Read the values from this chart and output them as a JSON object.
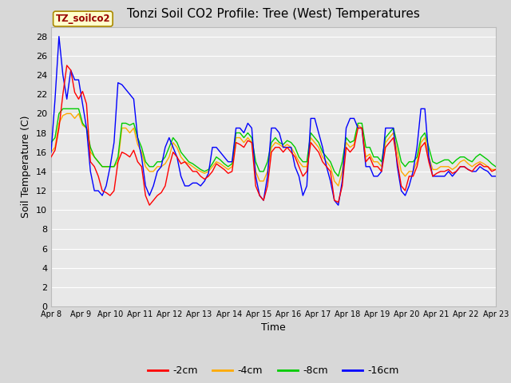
{
  "title": "Tonzi Soil CO2 Profile: Tree (West) Temperatures",
  "xlabel": "Time",
  "ylabel": "Soil Temperature (C)",
  "ylim": [
    0,
    29
  ],
  "yticks": [
    0,
    2,
    4,
    6,
    8,
    10,
    12,
    14,
    16,
    18,
    20,
    22,
    24,
    26,
    28
  ],
  "legend_label": "TZ_soilco2",
  "series_labels": [
    "-2cm",
    "-4cm",
    "-8cm",
    "-16cm"
  ],
  "series_colors": [
    "#ff0000",
    "#ffaa00",
    "#00cc00",
    "#0000ff"
  ],
  "fig_bg_color": "#d8d8d8",
  "plot_bg_color": "#e8e8e8",
  "legend_bg_color": "#ffffff",
  "title_fontsize": 11,
  "label_fontsize": 9,
  "tick_fontsize": 8,
  "xtick_labels": [
    "Apr 8",
    "Apr 9",
    "Apr 10",
    "Apr 11",
    "Apr 12",
    "Apr 13",
    "Apr 14",
    "Apr 15",
    "Apr 16",
    "Apr 17",
    "Apr 18",
    "Apr 19",
    "Apr 20",
    "Apr 21",
    "Apr 22",
    "Apr 23"
  ],
  "t_2cm": [
    15.5,
    16.2,
    18.5,
    22.0,
    25.0,
    24.5,
    22.2,
    21.5,
    22.3,
    21.0,
    15.0,
    14.5,
    13.5,
    12.0,
    11.8,
    11.5,
    12.0,
    15.0,
    16.0,
    15.8,
    15.5,
    16.2,
    15.0,
    14.5,
    11.5,
    10.5,
    11.0,
    11.5,
    11.8,
    12.5,
    14.5,
    16.0,
    15.5,
    14.8,
    15.0,
    14.5,
    14.0,
    14.0,
    13.5,
    13.2,
    13.5,
    14.0,
    14.8,
    14.5,
    14.2,
    13.8,
    14.0,
    17.0,
    16.8,
    16.5,
    17.2,
    17.0,
    12.5,
    11.5,
    11.0,
    12.5,
    16.0,
    16.5,
    16.5,
    16.0,
    16.5,
    16.0,
    15.5,
    14.5,
    13.5,
    14.0,
    17.0,
    16.5,
    16.0,
    15.0,
    14.5,
    14.0,
    11.0,
    10.8,
    12.5,
    16.5,
    16.0,
    16.5,
    18.5,
    18.5,
    15.0,
    15.5,
    14.5,
    14.5,
    14.0,
    16.5,
    17.0,
    17.5,
    15.0,
    12.5,
    12.0,
    13.5,
    13.5,
    14.5,
    16.5,
    17.0,
    15.0,
    13.5,
    13.8,
    14.0,
    14.0,
    14.2,
    13.8,
    14.0,
    14.5,
    14.5,
    14.2,
    14.0,
    14.5,
    14.8,
    14.5,
    14.5,
    14.0,
    14.2
  ],
  "t_4cm": [
    16.0,
    16.5,
    19.0,
    19.8,
    20.0,
    20.0,
    19.5,
    20.0,
    18.8,
    18.5,
    16.0,
    15.5,
    15.0,
    14.5,
    14.5,
    14.5,
    14.5,
    15.0,
    18.5,
    18.5,
    18.0,
    18.5,
    16.8,
    16.0,
    14.5,
    14.0,
    14.0,
    14.5,
    14.5,
    14.8,
    15.5,
    17.0,
    16.5,
    15.5,
    15.0,
    14.8,
    14.5,
    14.2,
    14.0,
    13.8,
    14.0,
    14.5,
    15.0,
    14.8,
    14.5,
    14.2,
    14.5,
    17.5,
    17.5,
    17.0,
    17.5,
    17.0,
    14.0,
    13.0,
    13.0,
    14.0,
    16.5,
    17.0,
    16.8,
    16.5,
    16.8,
    16.5,
    15.8,
    15.0,
    14.5,
    14.5,
    17.5,
    17.0,
    16.5,
    15.5,
    15.0,
    14.5,
    13.0,
    12.5,
    14.0,
    17.0,
    16.5,
    16.8,
    18.8,
    18.5,
    15.5,
    15.8,
    15.0,
    15.0,
    14.5,
    17.0,
    17.5,
    18.0,
    16.0,
    14.0,
    13.5,
    14.0,
    14.0,
    15.0,
    17.0,
    17.5,
    15.5,
    14.2,
    14.2,
    14.5,
    14.5,
    14.5,
    14.2,
    14.5,
    15.0,
    15.2,
    14.8,
    14.5,
    14.8,
    15.0,
    14.8,
    14.5,
    14.2,
    14.2
  ],
  "t_8cm": [
    17.0,
    17.5,
    20.0,
    20.5,
    20.5,
    20.5,
    20.5,
    20.5,
    19.0,
    18.5,
    16.5,
    15.5,
    15.0,
    14.5,
    14.5,
    14.5,
    14.5,
    15.5,
    19.0,
    19.0,
    18.8,
    19.0,
    17.5,
    16.5,
    15.0,
    14.5,
    14.5,
    15.0,
    15.0,
    15.5,
    16.5,
    17.5,
    17.0,
    16.0,
    15.5,
    15.0,
    14.8,
    14.5,
    14.2,
    14.0,
    14.2,
    14.8,
    15.5,
    15.2,
    14.8,
    14.5,
    14.8,
    18.0,
    18.0,
    17.5,
    18.0,
    17.5,
    15.0,
    14.0,
    14.0,
    15.0,
    17.0,
    17.5,
    17.0,
    16.8,
    17.2,
    17.0,
    16.5,
    15.5,
    15.0,
    15.0,
    18.0,
    17.5,
    17.0,
    16.0,
    15.5,
    15.0,
    14.0,
    13.5,
    15.0,
    17.5,
    17.0,
    17.2,
    19.0,
    19.0,
    16.5,
    16.5,
    15.5,
    15.5,
    15.0,
    17.5,
    18.0,
    18.5,
    16.8,
    15.0,
    14.5,
    15.0,
    15.0,
    15.5,
    17.5,
    18.0,
    16.5,
    15.0,
    14.8,
    15.0,
    15.2,
    15.2,
    14.8,
    15.2,
    15.5,
    15.5,
    15.2,
    15.0,
    15.5,
    15.8,
    15.5,
    15.2,
    14.8,
    14.5
  ],
  "t_16cm": [
    16.0,
    21.5,
    28.0,
    24.0,
    21.5,
    24.5,
    23.5,
    23.5,
    21.0,
    18.5,
    14.0,
    12.0,
    12.0,
    11.5,
    12.5,
    14.5,
    17.0,
    23.2,
    23.0,
    22.5,
    22.0,
    21.5,
    17.5,
    15.5,
    12.5,
    11.5,
    12.5,
    14.0,
    14.5,
    16.5,
    17.5,
    16.5,
    15.5,
    13.5,
    12.5,
    12.5,
    12.8,
    12.8,
    12.5,
    13.0,
    13.8,
    16.5,
    16.5,
    16.0,
    15.5,
    15.0,
    15.0,
    18.5,
    18.5,
    18.0,
    19.0,
    18.5,
    13.5,
    11.5,
    11.0,
    13.5,
    18.5,
    18.5,
    18.0,
    16.5,
    16.5,
    16.5,
    14.5,
    13.5,
    11.5,
    12.5,
    19.5,
    19.5,
    18.0,
    16.5,
    14.5,
    13.0,
    11.0,
    10.5,
    13.0,
    18.5,
    19.5,
    19.5,
    18.5,
    18.5,
    14.5,
    14.5,
    13.5,
    13.5,
    14.0,
    18.5,
    18.5,
    18.5,
    14.5,
    12.0,
    11.5,
    12.5,
    14.0,
    16.5,
    20.5,
    20.5,
    15.5,
    13.5,
    13.5,
    13.5,
    13.5,
    14.0,
    13.5,
    14.0,
    14.5,
    14.5,
    14.2,
    14.0,
    14.0,
    14.5,
    14.2,
    14.0,
    13.5,
    13.5
  ]
}
